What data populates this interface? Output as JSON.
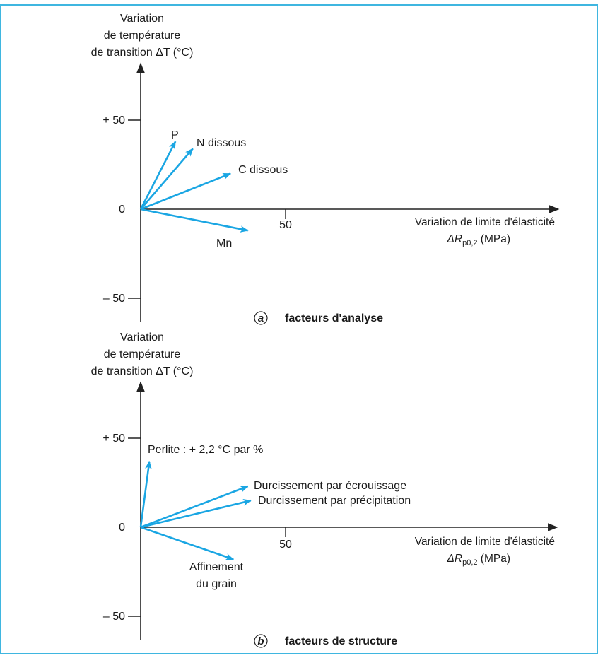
{
  "frame_color": "#3fb6e0",
  "vector_color": "#1aa6e3",
  "axis_color": "#222222",
  "panels": [
    {
      "id": "a",
      "y_label": [
        "Variation",
        "de température",
        "de transition ΔT (°C)"
      ],
      "ticks_y": [
        "+ 50",
        "0",
        "– 50"
      ],
      "tick_x": "50",
      "x_label": [
        "Variation de limite d'élasticité",
        "ΔR",
        "p0,2",
        " (MPa)"
      ],
      "caption_letter": "a",
      "caption_text": "facteurs d'analyse",
      "vectors": [
        {
          "label": "P",
          "dx": 12,
          "dy": 38
        },
        {
          "label": "N dissous",
          "dx": 18,
          "dy": 34
        },
        {
          "label": "C dissous",
          "dx": 31,
          "dy": 20
        },
        {
          "label": "Mn",
          "dx": 37,
          "dy": -12
        }
      ]
    },
    {
      "id": "b",
      "y_label": [
        "Variation",
        "de température",
        "de transition ΔT (°C)"
      ],
      "ticks_y": [
        "+ 50",
        "0",
        "– 50"
      ],
      "tick_x": "50",
      "x_label": [
        "Variation de limite d'élasticité",
        "ΔR",
        "p0,2",
        " (MPa)"
      ],
      "caption_letter": "b",
      "caption_text": "facteurs de structure",
      "vectors": [
        {
          "label": "Perlite : + 2,2 °C par %",
          "dx": 3,
          "dy": 37
        },
        {
          "label": "Durcissement par écrouissage",
          "dx": 37,
          "dy": 23
        },
        {
          "label": "Durcissement par précipitation",
          "dx": 38,
          "dy": 15
        },
        {
          "label": "Affinement",
          "label2": "du grain",
          "dx": 32,
          "dy": -18
        }
      ]
    }
  ]
}
